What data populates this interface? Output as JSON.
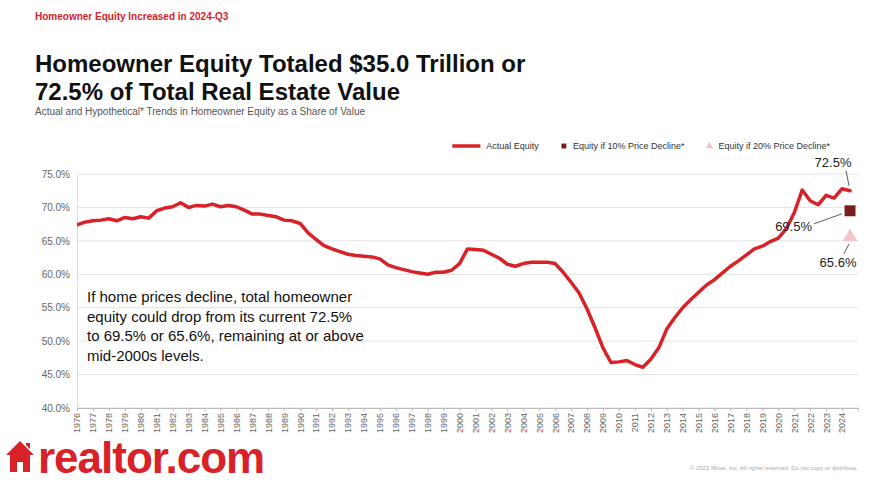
{
  "chart_data": {
    "type": "line",
    "kicker": "Homeowner Equity Increased in 2024-Q3",
    "title": [
      "Homeowner Equity Totaled $35.0 Trillion or",
      "72.5% of Total Real Estate Value"
    ],
    "subtitle": "Actual and Hypothetical* Trends in Homeowner Equity as a Share of Value",
    "note": [
      "If home prices decline, total homeowner",
      "equity could drop from its current 72.5%",
      "to 69.5% or 65.6%, remaining at or above",
      "mid-2000s levels."
    ],
    "annotations": [
      "72.5%",
      "69.5%",
      "65.6%"
    ],
    "legend": "top-right",
    "grid": true,
    "xlim": [
      1976,
      2025
    ],
    "xticks": [
      1976,
      1977,
      1978,
      1979,
      1980,
      1981,
      1982,
      1983,
      1984,
      1985,
      1986,
      1987,
      1988,
      1989,
      1990,
      1991,
      1992,
      1993,
      1994,
      1995,
      1996,
      1997,
      1998,
      1999,
      2000,
      2001,
      2002,
      2003,
      2004,
      2005,
      2006,
      2007,
      2008,
      2009,
      2010,
      2011,
      2012,
      2013,
      2014,
      2015,
      2016,
      2017,
      2018,
      2019,
      2020,
      2021,
      2022,
      2023,
      2024
    ],
    "ylim": [
      40,
      75
    ],
    "yticks": [
      {
        "value": 40,
        "label": "40.0%"
      },
      {
        "value": 45,
        "label": "45.0%"
      },
      {
        "value": 50,
        "label": "50.0%"
      },
      {
        "value": 55,
        "label": "55.0%"
      },
      {
        "value": 60,
        "label": "60.0%"
      },
      {
        "value": 65,
        "label": "65.0%"
      },
      {
        "value": 70,
        "label": "70.0%"
      },
      {
        "value": 75,
        "label": "75.0%"
      }
    ],
    "x": [
      1976,
      1976.5,
      1977,
      1977.5,
      1978,
      1978.5,
      1979,
      1979.5,
      1980,
      1980.5,
      1981,
      1981.5,
      1982,
      1982.5,
      1983,
      1983.5,
      1984,
      1984.5,
      1985,
      1985.5,
      1986,
      1986.5,
      1987,
      1987.5,
      1988,
      1988.5,
      1989,
      1989.5,
      1990,
      1990.5,
      1991,
      1991.5,
      1992,
      1992.5,
      1993,
      1993.5,
      1994,
      1994.5,
      1995,
      1995.5,
      1996,
      1996.5,
      1997,
      1997.5,
      1998,
      1998.5,
      1999,
      1999.5,
      2000,
      2000.5,
      2001,
      2001.5,
      2002,
      2002.5,
      2003,
      2003.5,
      2004,
      2004.5,
      2005,
      2005.5,
      2006,
      2006.5,
      2007,
      2007.5,
      2008,
      2008.5,
      2009,
      2009.5,
      2010,
      2010.5,
      2011,
      2011.5,
      2012,
      2012.5,
      2013,
      2013.5,
      2014,
      2014.5,
      2015,
      2015.5,
      2016,
      2016.5,
      2017,
      2017.5,
      2018,
      2018.5,
      2019,
      2019.5,
      2020,
      2020.5,
      2021,
      2021.5,
      2022,
      2022.5,
      2023,
      2023.5,
      2024,
      2024.5
    ],
    "series": [
      {
        "name": "Actual Equity",
        "color": "#d92228",
        "type": "line",
        "line_style": "solid",
        "values": [
          67.4,
          67.8,
          68.0,
          68.1,
          68.3,
          68.0,
          68.5,
          68.3,
          68.6,
          68.4,
          69.5,
          69.9,
          70.1,
          70.7,
          70.0,
          70.3,
          70.2,
          70.5,
          70.1,
          70.3,
          70.1,
          69.6,
          69.0,
          69.0,
          68.8,
          68.6,
          68.1,
          68.0,
          67.6,
          66.2,
          65.2,
          64.3,
          63.8,
          63.4,
          63.0,
          62.8,
          62.7,
          62.6,
          62.3,
          61.4,
          61.0,
          60.7,
          60.4,
          60.2,
          60.0,
          60.3,
          60.3,
          60.6,
          61.6,
          63.8,
          63.7,
          63.6,
          63.0,
          62.4,
          61.5,
          61.2,
          61.6,
          61.8,
          61.8,
          61.8,
          61.6,
          60.3,
          58.8,
          57.2,
          54.8,
          52.0,
          49.0,
          46.8,
          46.9,
          47.1,
          46.5,
          46.1,
          47.3,
          49.0,
          51.8,
          53.5,
          55.0,
          56.2,
          57.3,
          58.4,
          59.2,
          60.2,
          61.2,
          62.0,
          62.9,
          63.8,
          64.2,
          64.9,
          65.4,
          66.8,
          69.2,
          72.6,
          71.0,
          70.4,
          71.8,
          71.4,
          72.8,
          72.5
        ]
      },
      {
        "name": "Equity if 10% Price Decline*",
        "color": "#7b1c1c",
        "type": "scatter",
        "marker": "square",
        "values": [
          null,
          null,
          null,
          null,
          null,
          null,
          null,
          null,
          null,
          null,
          null,
          null,
          null,
          null,
          null,
          null,
          null,
          null,
          null,
          null,
          null,
          null,
          null,
          null,
          null,
          null,
          null,
          null,
          null,
          null,
          null,
          null,
          null,
          null,
          null,
          null,
          null,
          null,
          null,
          null,
          null,
          null,
          null,
          null,
          null,
          null,
          null,
          null,
          null,
          null,
          null,
          null,
          null,
          null,
          null,
          null,
          null,
          null,
          null,
          null,
          null,
          null,
          null,
          null,
          null,
          null,
          null,
          null,
          null,
          null,
          null,
          null,
          null,
          null,
          null,
          null,
          null,
          null,
          null,
          null,
          null,
          null,
          null,
          null,
          null,
          null,
          null,
          null,
          null,
          null,
          null,
          null,
          null,
          null,
          null,
          null,
          null,
          69.5
        ]
      },
      {
        "name": "Equity if 20% Price Decline*",
        "color": "#f2c4cb",
        "type": "scatter",
        "marker": "triangle",
        "values": [
          null,
          null,
          null,
          null,
          null,
          null,
          null,
          null,
          null,
          null,
          null,
          null,
          null,
          null,
          null,
          null,
          null,
          null,
          null,
          null,
          null,
          null,
          null,
          null,
          null,
          null,
          null,
          null,
          null,
          null,
          null,
          null,
          null,
          null,
          null,
          null,
          null,
          null,
          null,
          null,
          null,
          null,
          null,
          null,
          null,
          null,
          null,
          null,
          null,
          null,
          null,
          null,
          null,
          null,
          null,
          null,
          null,
          null,
          null,
          null,
          null,
          null,
          null,
          null,
          null,
          null,
          null,
          null,
          null,
          null,
          null,
          null,
          null,
          null,
          null,
          null,
          null,
          null,
          null,
          null,
          null,
          null,
          null,
          null,
          null,
          null,
          null,
          null,
          null,
          null,
          null,
          null,
          null,
          null,
          null,
          null,
          null,
          65.6
        ]
      }
    ]
  },
  "branding": {
    "logo": "realtor.com",
    "copyright": "© 2022 Move, Inc. All rights reserved. Do not copy or distribute."
  }
}
